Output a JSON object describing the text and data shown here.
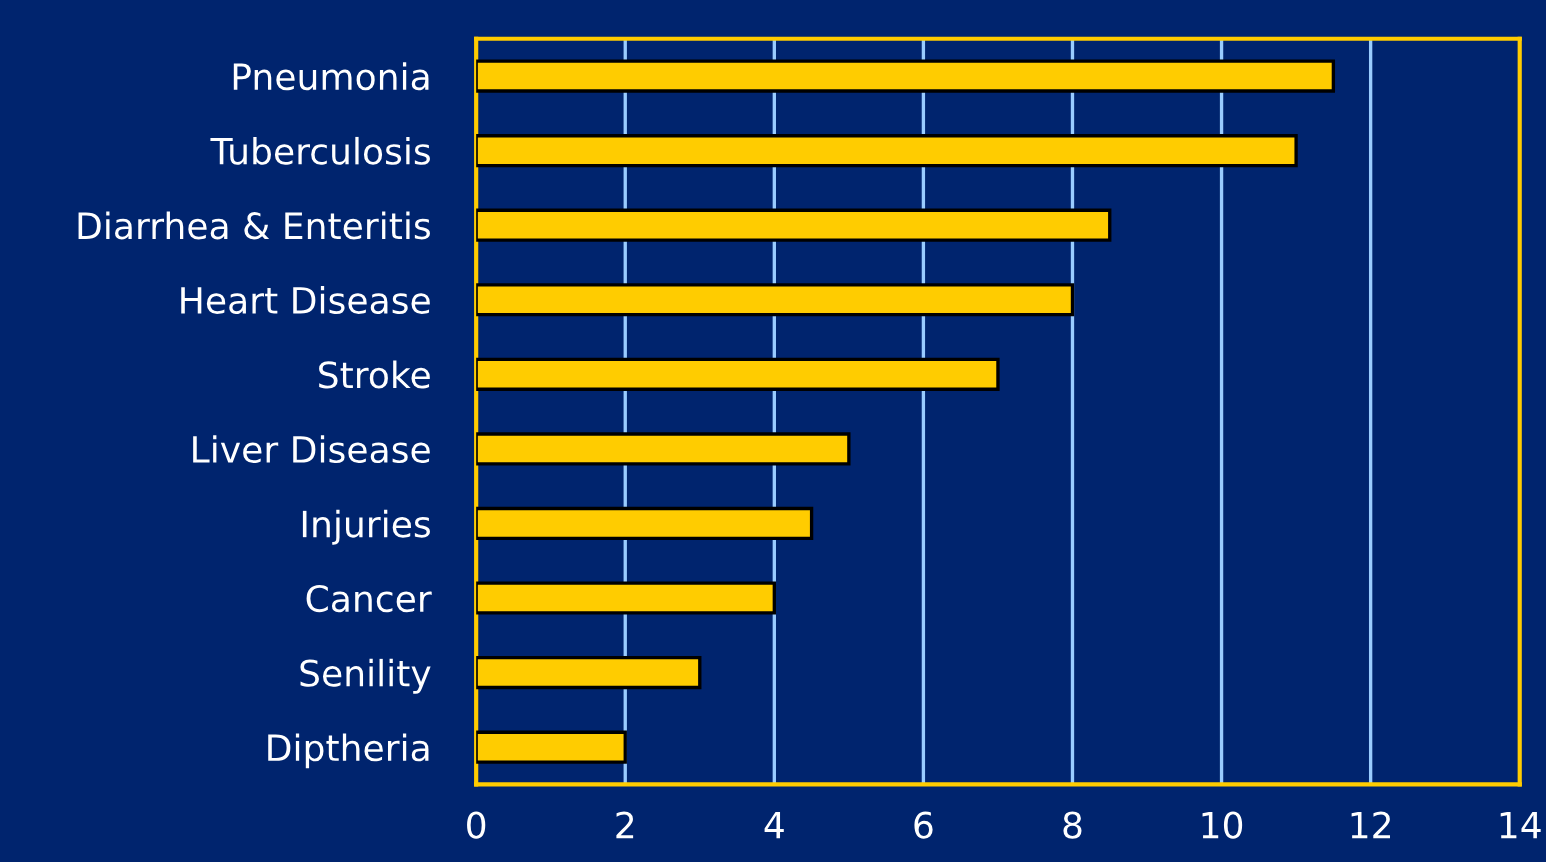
{
  "chart_data": {
    "type": "bar",
    "orientation": "horizontal",
    "categories": [
      "Pneumonia",
      "Tuberculosis",
      "Diarrhea & Enteritis",
      "Heart Disease",
      "Stroke",
      "Liver Disease",
      "Injuries",
      "Cancer",
      "Senility",
      "Diptheria"
    ],
    "values": [
      11.5,
      11.0,
      8.5,
      8.0,
      7.0,
      5.0,
      4.5,
      4.0,
      3.0,
      2.0
    ],
    "color": "#ffcc00",
    "xlim": [
      0,
      14
    ],
    "xticks": [
      0,
      2,
      4,
      6,
      8,
      10,
      12,
      14
    ],
    "grid": "x"
  }
}
